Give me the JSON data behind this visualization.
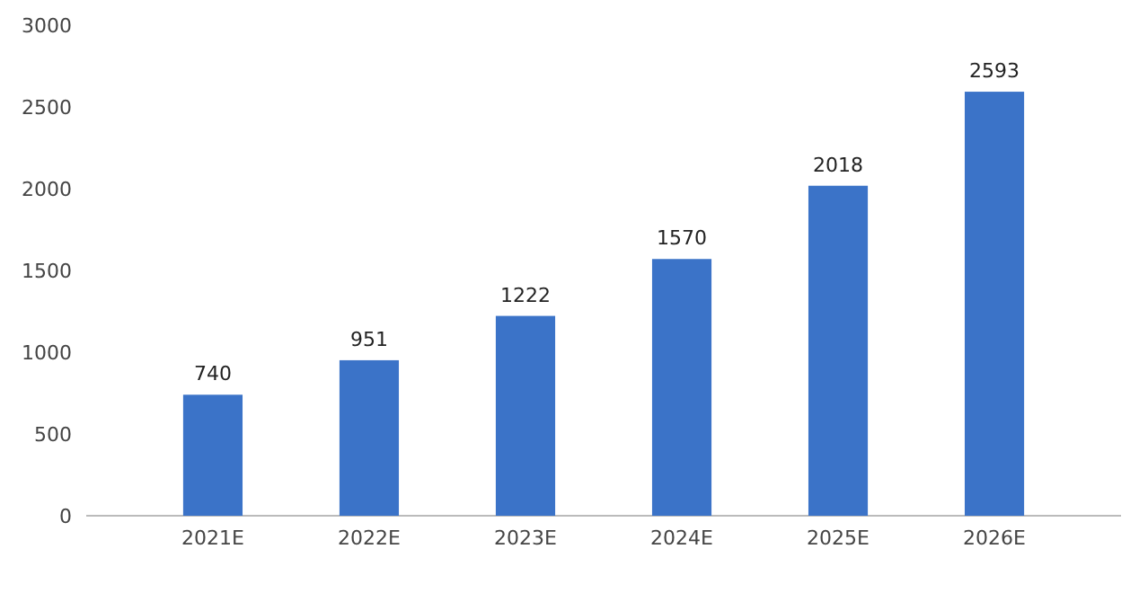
{
  "chart_data": {
    "type": "bar",
    "categories": [
      "2021E",
      "2022E",
      "2023E",
      "2024E",
      "2025E",
      "2026E"
    ],
    "values": [
      740,
      951,
      1222,
      1570,
      2018,
      2593
    ],
    "color": "#3b73c8",
    "ylim": [
      0,
      3000
    ],
    "yticks": [
      0,
      500,
      1000,
      1500,
      2000,
      2500,
      3000
    ],
    "data_labels": true
  }
}
